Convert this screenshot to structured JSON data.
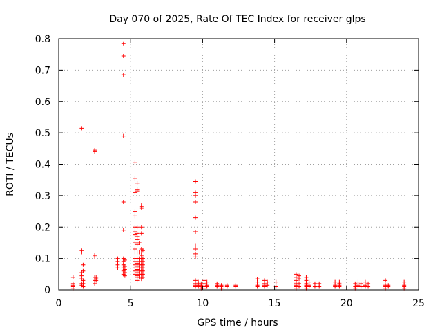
{
  "chart_data": {
    "type": "scatter",
    "title": "Day 070 of 2025, Rate Of TEC Index for receiver glps",
    "xlabel": "GPS time / hours",
    "ylabel": "ROTI / TECUs",
    "xlim": [
      0,
      25
    ],
    "ylim": [
      0,
      0.8
    ],
    "x_ticks": [
      0,
      5,
      10,
      15,
      20,
      25
    ],
    "y_ticks": [
      0,
      0.1,
      0.2,
      0.3,
      0.4,
      0.5,
      0.6,
      0.7,
      0.8
    ],
    "x_tick_labels": [
      "0",
      "5",
      "10",
      "15",
      "20",
      "25"
    ],
    "y_tick_labels": [
      "0",
      "0.1",
      "0.2",
      "0.3",
      "0.4",
      "0.5",
      "0.6",
      "0.7",
      "0.8"
    ],
    "grid": true,
    "marker": "+",
    "marker_color": "#ff0000",
    "grid_color": "#a0a0a0",
    "series": [
      {
        "name": "ROTI",
        "points": [
          [
            1.0,
            0.04
          ],
          [
            1.0,
            0.02
          ],
          [
            1.0,
            0.015
          ],
          [
            1.0,
            0.01
          ],
          [
            1.0,
            0.005
          ],
          [
            1.6,
            0.515
          ],
          [
            1.6,
            0.125
          ],
          [
            1.6,
            0.12
          ],
          [
            1.6,
            0.055
          ],
          [
            1.6,
            0.045
          ],
          [
            1.6,
            0.035
          ],
          [
            1.6,
            0.02
          ],
          [
            1.6,
            0.015
          ],
          [
            1.7,
            0.08
          ],
          [
            1.7,
            0.06
          ],
          [
            1.7,
            0.03
          ],
          [
            1.7,
            0.02
          ],
          [
            1.7,
            0.01
          ],
          [
            2.5,
            0.445
          ],
          [
            2.5,
            0.44
          ],
          [
            2.5,
            0.11
          ],
          [
            2.5,
            0.105
          ],
          [
            2.5,
            0.04
          ],
          [
            2.5,
            0.03
          ],
          [
            2.5,
            0.02
          ],
          [
            2.6,
            0.04
          ],
          [
            2.6,
            0.035
          ],
          [
            2.6,
            0.03
          ],
          [
            4.1,
            0.1
          ],
          [
            4.1,
            0.09
          ],
          [
            4.1,
            0.08
          ],
          [
            4.1,
            0.07
          ],
          [
            4.5,
            0.785
          ],
          [
            4.5,
            0.745
          ],
          [
            4.5,
            0.685
          ],
          [
            4.5,
            0.49
          ],
          [
            4.5,
            0.28
          ],
          [
            4.5,
            0.19
          ],
          [
            4.5,
            0.1
          ],
          [
            4.5,
            0.09
          ],
          [
            4.5,
            0.08
          ],
          [
            4.5,
            0.07
          ],
          [
            4.5,
            0.06
          ],
          [
            4.5,
            0.05
          ],
          [
            4.6,
            0.095
          ],
          [
            4.6,
            0.075
          ],
          [
            4.6,
            0.065
          ],
          [
            4.6,
            0.055
          ],
          [
            4.6,
            0.045
          ],
          [
            5.3,
            0.405
          ],
          [
            5.3,
            0.355
          ],
          [
            5.3,
            0.31
          ],
          [
            5.3,
            0.25
          ],
          [
            5.3,
            0.235
          ],
          [
            5.3,
            0.2
          ],
          [
            5.3,
            0.185
          ],
          [
            5.3,
            0.175
          ],
          [
            5.3,
            0.15
          ],
          [
            5.3,
            0.13
          ],
          [
            5.3,
            0.12
          ],
          [
            5.3,
            0.1
          ],
          [
            5.3,
            0.09
          ],
          [
            5.3,
            0.08
          ],
          [
            5.3,
            0.07
          ],
          [
            5.3,
            0.06
          ],
          [
            5.3,
            0.05
          ],
          [
            5.45,
            0.34
          ],
          [
            5.45,
            0.32
          ],
          [
            5.45,
            0.315
          ],
          [
            5.45,
            0.2
          ],
          [
            5.45,
            0.18
          ],
          [
            5.45,
            0.17
          ],
          [
            5.45,
            0.16
          ],
          [
            5.45,
            0.145
          ],
          [
            5.45,
            0.12
          ],
          [
            5.45,
            0.1
          ],
          [
            5.45,
            0.085
          ],
          [
            5.45,
            0.075
          ],
          [
            5.45,
            0.065
          ],
          [
            5.45,
            0.055
          ],
          [
            5.45,
            0.045
          ],
          [
            5.45,
            0.04
          ],
          [
            5.45,
            0.03
          ],
          [
            5.6,
            0.15
          ],
          [
            5.6,
            0.12
          ],
          [
            5.6,
            0.1
          ],
          [
            5.6,
            0.09
          ],
          [
            5.6,
            0.08
          ],
          [
            5.6,
            0.07
          ],
          [
            5.6,
            0.06
          ],
          [
            5.6,
            0.05
          ],
          [
            5.6,
            0.04
          ],
          [
            5.75,
            0.27
          ],
          [
            5.75,
            0.265
          ],
          [
            5.75,
            0.26
          ],
          [
            5.75,
            0.2
          ],
          [
            5.75,
            0.18
          ],
          [
            5.75,
            0.13
          ],
          [
            5.75,
            0.12
          ],
          [
            5.75,
            0.11
          ],
          [
            5.75,
            0.1
          ],
          [
            5.75,
            0.09
          ],
          [
            5.75,
            0.08
          ],
          [
            5.75,
            0.07
          ],
          [
            5.75,
            0.06
          ],
          [
            5.75,
            0.05
          ],
          [
            5.75,
            0.04
          ],
          [
            5.75,
            0.035
          ],
          [
            5.85,
            0.125
          ],
          [
            5.85,
            0.1
          ],
          [
            5.85,
            0.09
          ],
          [
            5.85,
            0.08
          ],
          [
            5.85,
            0.07
          ],
          [
            5.85,
            0.06
          ],
          [
            5.85,
            0.05
          ],
          [
            5.85,
            0.04
          ],
          [
            9.5,
            0.345
          ],
          [
            9.5,
            0.31
          ],
          [
            9.5,
            0.3
          ],
          [
            9.5,
            0.28
          ],
          [
            9.5,
            0.23
          ],
          [
            9.5,
            0.185
          ],
          [
            9.5,
            0.14
          ],
          [
            9.5,
            0.13
          ],
          [
            9.5,
            0.115
          ],
          [
            9.5,
            0.105
          ],
          [
            9.5,
            0.03
          ],
          [
            9.5,
            0.02
          ],
          [
            9.5,
            0.015
          ],
          [
            9.5,
            0.01
          ],
          [
            9.7,
            0.025
          ],
          [
            9.7,
            0.02
          ],
          [
            9.7,
            0.015
          ],
          [
            9.7,
            0.01
          ],
          [
            9.9,
            0.02
          ],
          [
            9.9,
            0.015
          ],
          [
            9.9,
            0.01
          ],
          [
            9.9,
            0.005
          ],
          [
            10.1,
            0.03
          ],
          [
            10.1,
            0.02
          ],
          [
            10.1,
            0.01
          ],
          [
            10.1,
            0.005
          ],
          [
            10.3,
            0.025
          ],
          [
            10.3,
            0.015
          ],
          [
            10.3,
            0.01
          ],
          [
            11.0,
            0.02
          ],
          [
            11.0,
            0.015
          ],
          [
            11.0,
            0.01
          ],
          [
            11.3,
            0.015
          ],
          [
            11.3,
            0.01
          ],
          [
            11.3,
            0.005
          ],
          [
            11.7,
            0.015
          ],
          [
            11.7,
            0.01
          ],
          [
            12.3,
            0.015
          ],
          [
            12.3,
            0.01
          ],
          [
            13.8,
            0.035
          ],
          [
            13.8,
            0.025
          ],
          [
            13.8,
            0.015
          ],
          [
            13.8,
            0.01
          ],
          [
            14.3,
            0.03
          ],
          [
            14.3,
            0.02
          ],
          [
            14.3,
            0.015
          ],
          [
            14.3,
            0.01
          ],
          [
            14.5,
            0.025
          ],
          [
            14.5,
            0.015
          ],
          [
            15.1,
            0.025
          ],
          [
            15.1,
            0.01
          ],
          [
            16.5,
            0.05
          ],
          [
            16.5,
            0.04
          ],
          [
            16.5,
            0.03
          ],
          [
            16.5,
            0.025
          ],
          [
            16.5,
            0.02
          ],
          [
            16.5,
            0.015
          ],
          [
            16.5,
            0.01
          ],
          [
            16.5,
            0.005
          ],
          [
            16.7,
            0.045
          ],
          [
            16.7,
            0.035
          ],
          [
            16.7,
            0.02
          ],
          [
            16.7,
            0.01
          ],
          [
            17.2,
            0.04
          ],
          [
            17.2,
            0.03
          ],
          [
            17.2,
            0.02
          ],
          [
            17.2,
            0.015
          ],
          [
            17.2,
            0.01
          ],
          [
            17.2,
            0.005
          ],
          [
            17.4,
            0.025
          ],
          [
            17.4,
            0.015
          ],
          [
            17.4,
            0.01
          ],
          [
            17.8,
            0.02
          ],
          [
            17.8,
            0.01
          ],
          [
            18.1,
            0.02
          ],
          [
            18.1,
            0.01
          ],
          [
            19.2,
            0.025
          ],
          [
            19.2,
            0.015
          ],
          [
            19.2,
            0.01
          ],
          [
            19.5,
            0.025
          ],
          [
            19.5,
            0.02
          ],
          [
            19.5,
            0.015
          ],
          [
            19.5,
            0.01
          ],
          [
            20.6,
            0.02
          ],
          [
            20.6,
            0.01
          ],
          [
            20.6,
            0.005
          ],
          [
            20.8,
            0.025
          ],
          [
            20.8,
            0.015
          ],
          [
            20.8,
            0.01
          ],
          [
            21.0,
            0.02
          ],
          [
            21.0,
            0.01
          ],
          [
            21.3,
            0.025
          ],
          [
            21.3,
            0.015
          ],
          [
            21.3,
            0.01
          ],
          [
            21.5,
            0.02
          ],
          [
            21.5,
            0.01
          ],
          [
            22.7,
            0.03
          ],
          [
            22.7,
            0.015
          ],
          [
            22.7,
            0.01
          ],
          [
            22.7,
            0.005
          ],
          [
            22.9,
            0.015
          ],
          [
            22.9,
            0.01
          ],
          [
            24.0,
            0.025
          ],
          [
            24.0,
            0.015
          ],
          [
            24.0,
            0.01
          ],
          [
            24.0,
            0.005
          ]
        ]
      }
    ]
  }
}
